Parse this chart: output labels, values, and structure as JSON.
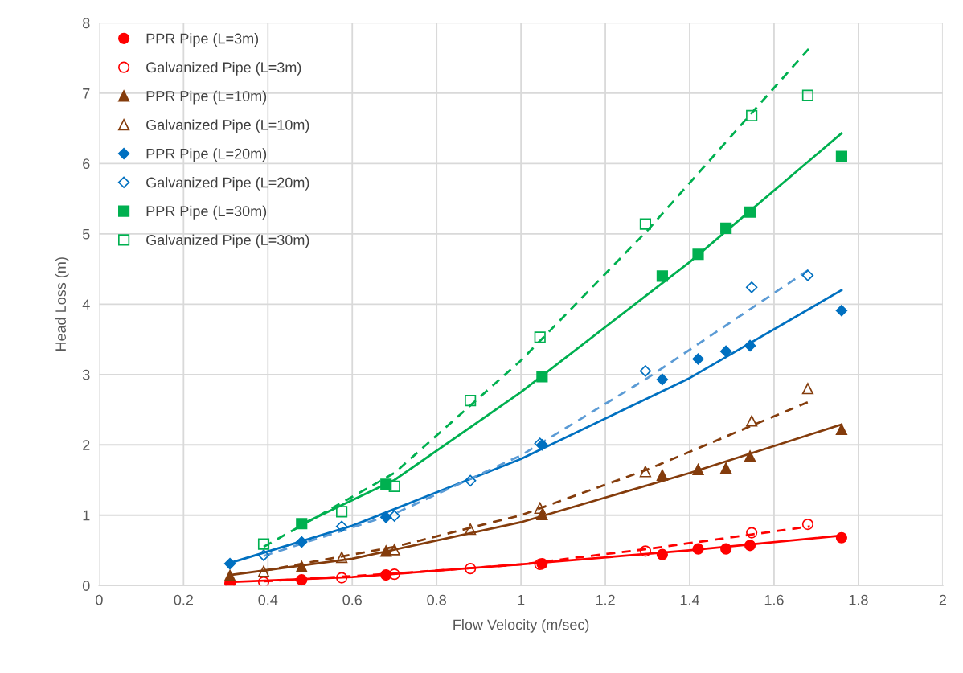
{
  "chart_data": {
    "type": "scatter",
    "xlabel": "Flow Velocity (m/sec)",
    "ylabel": "Head Loss (m)",
    "xlim": [
      0,
      2
    ],
    "ylim": [
      0,
      8
    ],
    "xticks": [
      0,
      0.2,
      0.4,
      0.6,
      0.8,
      1,
      1.2,
      1.4,
      1.6,
      1.8,
      2
    ],
    "yticks": [
      0,
      1,
      2,
      3,
      4,
      5,
      6,
      7,
      8
    ],
    "grid": true,
    "legend": "top left",
    "series": [
      {
        "name": "PPR Pipe (L=3m)",
        "color": "#ff0000",
        "marker": "circle",
        "x": [
          0.31,
          0.48,
          0.68,
          1.05,
          1.335,
          1.42,
          1.486,
          1.543,
          1.76
        ],
        "values": [
          0.03,
          0.08,
          0.15,
          0.31,
          0.44,
          0.52,
          0.52,
          0.57,
          0.68
        ]
      },
      {
        "name": "Galvanized Pipe (L=3m)",
        "color": "#ff0000",
        "marker": "circle",
        "x": [
          0.39,
          0.575,
          0.7,
          0.88,
          1.045,
          1.295,
          1.547,
          1.68
        ],
        "values": [
          0.05,
          0.11,
          0.16,
          0.24,
          0.3,
          0.49,
          0.75,
          0.87
        ]
      },
      {
        "name": "PPR Pipe (L=10m)",
        "color": "#843c0c",
        "marker": "triangle",
        "x": [
          0.31,
          0.48,
          0.68,
          1.05,
          1.335,
          1.42,
          1.486,
          1.543,
          1.76
        ],
        "values": [
          0.14,
          0.27,
          0.49,
          1.01,
          1.57,
          1.65,
          1.67,
          1.84,
          2.22
        ]
      },
      {
        "name": "Galvanized Pipe (L=10m)",
        "color": "#843c0c",
        "marker": "triangle",
        "x": [
          0.39,
          0.575,
          0.7,
          0.88,
          1.045,
          1.295,
          1.547,
          1.68
        ],
        "values": [
          0.2,
          0.4,
          0.51,
          0.8,
          1.1,
          1.62,
          2.34,
          2.8
        ]
      },
      {
        "name": "PPR Pipe (L=20m)",
        "color": "#0070c0",
        "marker": "diamond",
        "x": [
          0.31,
          0.48,
          0.68,
          1.05,
          1.335,
          1.42,
          1.486,
          1.543,
          1.76
        ],
        "values": [
          0.31,
          0.62,
          0.97,
          2.0,
          2.93,
          3.22,
          3.33,
          3.41,
          3.91
        ]
      },
      {
        "name": "Galvanized Pipe (L=20m)",
        "color": "#0070c0",
        "marker": "diamond",
        "x": [
          0.39,
          0.575,
          0.7,
          0.88,
          1.045,
          1.295,
          1.547,
          1.68
        ],
        "values": [
          0.43,
          0.84,
          0.99,
          1.49,
          2.02,
          3.05,
          4.24,
          4.41
        ]
      },
      {
        "name": "PPR Pipe (L=30m)",
        "color": "#00b050",
        "marker": "square",
        "x": [
          0.48,
          0.68,
          1.05,
          1.335,
          1.42,
          1.486,
          1.543,
          1.76
        ],
        "values": [
          0.88,
          1.44,
          2.97,
          4.4,
          4.71,
          5.08,
          5.31,
          6.1
        ]
      },
      {
        "name": "Galvanized Pipe (L=30m)",
        "color": "#00b050",
        "marker": "square",
        "x": [
          0.39,
          0.575,
          0.7,
          0.88,
          1.045,
          1.295,
          1.547,
          1.68
        ],
        "values": [
          0.59,
          1.05,
          1.41,
          2.63,
          3.53,
          5.14,
          6.68,
          6.97
        ]
      },
      {
        "type": "line",
        "color": "#ff0000",
        "line_style": "solid",
        "x": [
          0.31,
          0.6,
          1.0,
          1.4,
          1.76
        ],
        "values": [
          0.05,
          0.12,
          0.3,
          0.5,
          0.71
        ]
      },
      {
        "type": "line",
        "color": "#ff0000",
        "line_style": "dashed",
        "x": [
          0.39,
          0.7,
          1.0,
          1.3,
          1.685
        ],
        "values": [
          0.06,
          0.17,
          0.3,
          0.52,
          0.84
        ]
      },
      {
        "type": "line",
        "color": "#843c0c",
        "line_style": "solid",
        "x": [
          0.31,
          0.6,
          1.0,
          1.4,
          1.76
        ],
        "values": [
          0.15,
          0.38,
          0.9,
          1.6,
          2.29
        ]
      },
      {
        "type": "line",
        "color": "#843c0c",
        "line_style": "dashed",
        "x": [
          0.39,
          0.7,
          1.0,
          1.3,
          1.685
        ],
        "values": [
          0.21,
          0.55,
          1.0,
          1.65,
          2.62
        ]
      },
      {
        "type": "line",
        "color": "#0070c0",
        "line_style": "solid",
        "x": [
          0.31,
          0.6,
          1.0,
          1.4,
          1.76
        ],
        "values": [
          0.32,
          0.85,
          1.8,
          2.95,
          4.2
        ]
      },
      {
        "type": "line",
        "color": "#5b9bd5",
        "line_style": "dashed",
        "x": [
          0.39,
          0.7,
          1.0,
          1.3,
          1.685
        ],
        "values": [
          0.42,
          1.02,
          1.85,
          2.95,
          4.5
        ]
      },
      {
        "type": "line",
        "color": "#00b050",
        "line_style": "solid",
        "x": [
          0.48,
          0.7,
          1.0,
          1.4,
          1.76
        ],
        "values": [
          0.87,
          1.5,
          2.75,
          4.6,
          6.43
        ]
      },
      {
        "type": "line",
        "color": "#00b050",
        "line_style": "dashed",
        "x": [
          0.39,
          0.7,
          1.0,
          1.3,
          1.685
        ],
        "values": [
          0.55,
          1.6,
          3.2,
          5.05,
          7.65
        ]
      }
    ]
  }
}
